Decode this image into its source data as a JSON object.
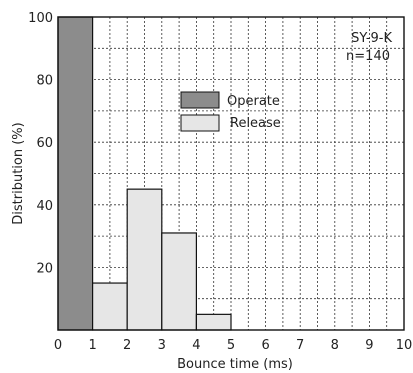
{
  "chart_data": {
    "type": "bar",
    "title": "",
    "xlabel": "Bounce time (ms)",
    "ylabel": "Distribution (%)",
    "xlim": [
      0,
      10
    ],
    "ylim": [
      0,
      100
    ],
    "x_ticks": [
      "0",
      "1",
      "2",
      "3",
      "4",
      "5",
      "6",
      "7",
      "8",
      "9",
      "10"
    ],
    "y_ticks": [
      "20",
      "40",
      "60",
      "80",
      "100"
    ],
    "grid": true,
    "annotations": [
      "SY-9-K",
      "n=140"
    ],
    "legend_position": "center",
    "bin_edges": [
      0,
      1,
      2,
      3,
      4,
      5
    ],
    "series": [
      {
        "name": "Operate",
        "color": "#8c8c8c",
        "bins": [
          {
            "x0": 0,
            "x1": 1,
            "value": 100
          }
        ]
      },
      {
        "name": "Release",
        "color": "#e6e6e6",
        "bins": [
          {
            "x0": 1,
            "x1": 2,
            "value": 15
          },
          {
            "x0": 2,
            "x1": 3,
            "value": 45
          },
          {
            "x0": 3,
            "x1": 4,
            "value": 31
          },
          {
            "x0": 4,
            "x1": 5,
            "value": 5
          }
        ]
      }
    ]
  }
}
